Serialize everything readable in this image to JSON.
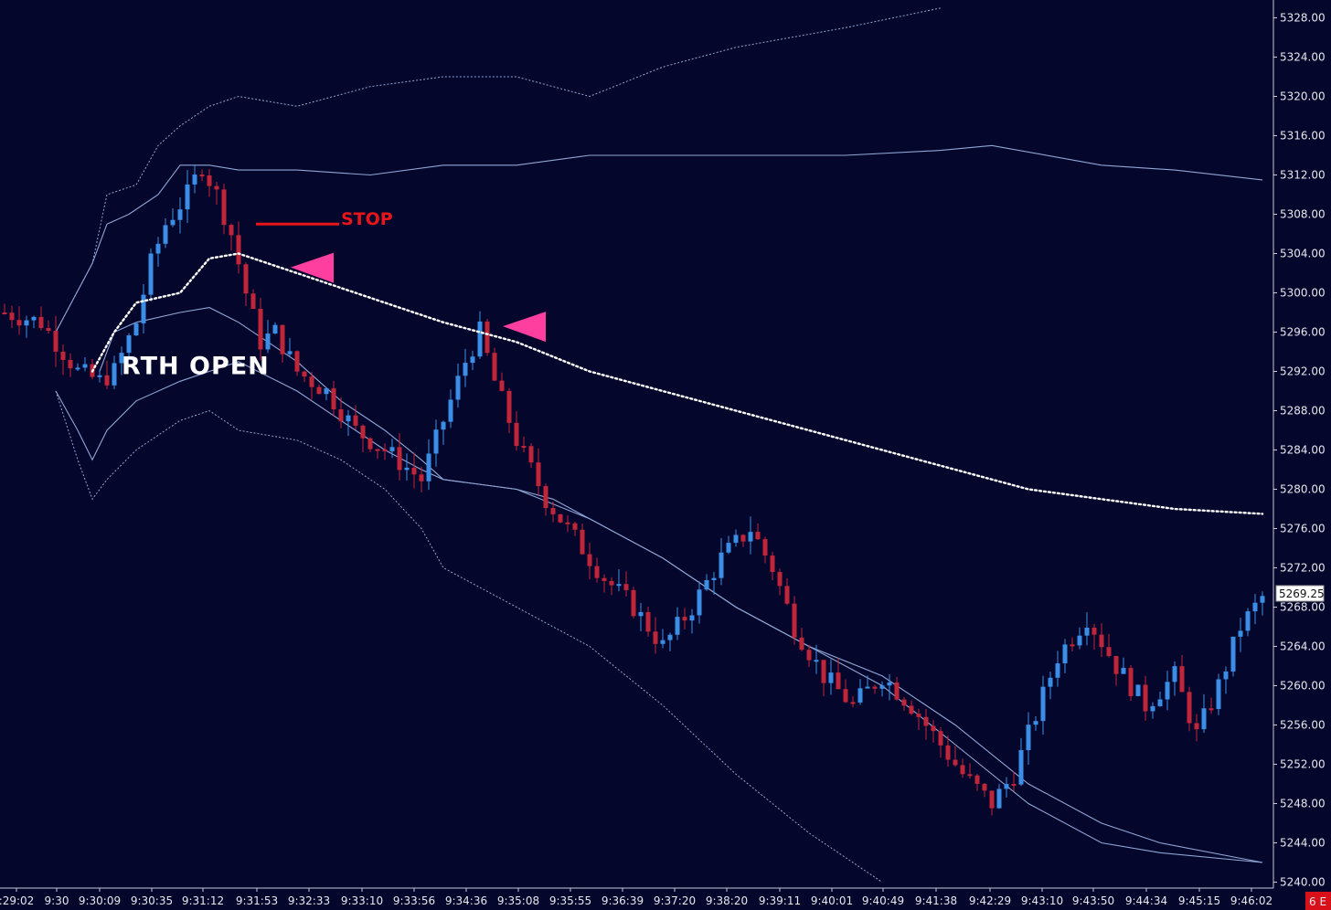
{
  "chart_data": {
    "type": "candlestick",
    "ylim": [
      5240,
      5329
    ],
    "y_ticks": [
      "5328.00",
      "5324.00",
      "5320.00",
      "5316.00",
      "5312.00",
      "5308.00",
      "5304.00",
      "5300.00",
      "5296.00",
      "5292.00",
      "5288.00",
      "5284.00",
      "5280.00",
      "5276.00",
      "5272.00",
      "5268.00",
      "5264.00",
      "5260.00",
      "5256.00",
      "5252.00",
      "5248.00",
      "5244.00",
      "5240.00"
    ],
    "x_ticks": [
      ":29:02",
      "9:30",
      "9:30:09",
      "9:30:35",
      "9:31:12",
      "9:31:53",
      "9:32:33",
      "9:33:10",
      "9:33:56",
      "9:34:36",
      "9:35:08",
      "9:35:55",
      "9:36:39",
      "9:37:20",
      "9:38:20",
      "9:39:11",
      "9:40:01",
      "9:40:49",
      "9:41:38",
      "9:42:29",
      "9:43:10",
      "9:43:50",
      "9:44:34",
      "9:45:15",
      "9:46:02"
    ],
    "last_price": "5269.25",
    "corner_label": "6 E",
    "grid": false,
    "price_path": [
      [
        0,
        5298
      ],
      [
        5,
        5297
      ],
      [
        10,
        5292
      ],
      [
        13,
        5291
      ],
      [
        15,
        5292
      ],
      [
        18,
        5297
      ],
      [
        20,
        5303
      ],
      [
        22,
        5307
      ],
      [
        25,
        5310
      ],
      [
        27,
        5313
      ],
      [
        29,
        5310
      ],
      [
        31,
        5306
      ],
      [
        33,
        5300
      ],
      [
        35,
        5295
      ],
      [
        37,
        5296
      ],
      [
        40,
        5292
      ],
      [
        44,
        5290
      ],
      [
        48,
        5286
      ],
      [
        52,
        5284
      ],
      [
        57,
        5281
      ],
      [
        60,
        5287
      ],
      [
        63,
        5293
      ],
      [
        65,
        5296
      ],
      [
        67,
        5291
      ],
      [
        70,
        5285
      ],
      [
        74,
        5279
      ],
      [
        78,
        5275
      ],
      [
        82,
        5271
      ],
      [
        86,
        5268
      ],
      [
        90,
        5264
      ],
      [
        94,
        5268
      ],
      [
        98,
        5273
      ],
      [
        102,
        5276
      ],
      [
        105,
        5272
      ],
      [
        108,
        5266
      ],
      [
        112,
        5261
      ],
      [
        116,
        5258
      ],
      [
        120,
        5261
      ],
      [
        124,
        5258
      ],
      [
        127,
        5255
      ],
      [
        131,
        5251
      ],
      [
        135,
        5248
      ],
      [
        138,
        5251
      ],
      [
        141,
        5257
      ],
      [
        144,
        5263
      ],
      [
        148,
        5267
      ],
      [
        152,
        5262
      ],
      [
        156,
        5258
      ],
      [
        160,
        5261
      ],
      [
        163,
        5255
      ],
      [
        166,
        5260
      ],
      [
        169,
        5266
      ],
      [
        172,
        5269
      ]
    ],
    "series": [
      {
        "name": "",
        "style": "dotted-white",
        "points": [
          [
            12,
            5292
          ],
          [
            15,
            5296
          ],
          [
            18,
            5299
          ],
          [
            24,
            5300
          ],
          [
            28,
            5303.5
          ],
          [
            32,
            5304
          ],
          [
            40,
            5302
          ],
          [
            52,
            5299
          ],
          [
            60,
            5297
          ],
          [
            70,
            5295
          ],
          [
            80,
            5292
          ],
          [
            90,
            5290
          ],
          [
            100,
            5288
          ],
          [
            110,
            5286
          ],
          [
            120,
            5284
          ],
          [
            130,
            5282
          ],
          [
            140,
            5280
          ],
          [
            150,
            5279
          ],
          [
            160,
            5278
          ],
          [
            172,
            5277.5
          ]
        ]
      },
      {
        "name": "",
        "style": "solid-blue",
        "points": [
          [
            13,
            5292
          ],
          [
            15,
            5296
          ],
          [
            18,
            5297
          ],
          [
            24,
            5298
          ],
          [
            28,
            5298.5
          ],
          [
            32,
            5297
          ],
          [
            40,
            5293
          ],
          [
            46,
            5289
          ],
          [
            52,
            5286
          ],
          [
            57,
            5283
          ],
          [
            60,
            5281
          ],
          [
            70,
            5280
          ],
          [
            75,
            5279
          ],
          [
            80,
            5277
          ],
          [
            90,
            5273
          ],
          [
            100,
            5268
          ],
          [
            110,
            5264
          ],
          [
            120,
            5260
          ],
          [
            130,
            5254
          ],
          [
            140,
            5248
          ],
          [
            150,
            5244
          ],
          [
            158,
            5243
          ],
          [
            172,
            5242
          ]
        ]
      },
      {
        "name": "",
        "style": "solid-blue",
        "points": [
          [
            7,
            5296
          ],
          [
            12,
            5303
          ],
          [
            14,
            5307
          ],
          [
            17,
            5308
          ],
          [
            21,
            5310
          ],
          [
            24,
            5313
          ],
          [
            28,
            5313
          ],
          [
            32,
            5312.5
          ],
          [
            40,
            5312.5
          ],
          [
            50,
            5312
          ],
          [
            60,
            5313
          ],
          [
            70,
            5313
          ],
          [
            80,
            5314
          ],
          [
            100,
            5314
          ],
          [
            115,
            5314
          ],
          [
            128,
            5314.5
          ],
          [
            135,
            5315
          ],
          [
            150,
            5313
          ],
          [
            160,
            5312.5
          ],
          [
            172,
            5311.5
          ]
        ]
      },
      {
        "name": "",
        "style": "dotted-blue",
        "points": [
          [
            7,
            5296
          ],
          [
            12,
            5303
          ],
          [
            14,
            5310
          ],
          [
            18,
            5311
          ],
          [
            21,
            5315
          ],
          [
            24,
            5317
          ],
          [
            28,
            5319
          ],
          [
            32,
            5320
          ],
          [
            40,
            5319
          ],
          [
            50,
            5321
          ],
          [
            60,
            5322
          ],
          [
            70,
            5322
          ],
          [
            80,
            5320
          ],
          [
            90,
            5323
          ],
          [
            100,
            5325
          ],
          [
            115,
            5327
          ],
          [
            128,
            5329
          ]
        ]
      },
      {
        "name": "",
        "style": "solid-blue",
        "points": [
          [
            7,
            5290
          ],
          [
            10,
            5286
          ],
          [
            12,
            5283
          ],
          [
            14,
            5286
          ],
          [
            18,
            5289
          ],
          [
            24,
            5291
          ],
          [
            28,
            5292
          ],
          [
            32,
            5293
          ],
          [
            40,
            5290
          ],
          [
            46,
            5287
          ],
          [
            52,
            5284
          ],
          [
            57,
            5282
          ],
          [
            60,
            5281
          ],
          [
            70,
            5280
          ],
          [
            80,
            5277
          ],
          [
            90,
            5273
          ],
          [
            100,
            5268
          ],
          [
            110,
            5264
          ],
          [
            120,
            5261
          ],
          [
            130,
            5256
          ],
          [
            140,
            5250
          ],
          [
            150,
            5246
          ],
          [
            158,
            5244
          ],
          [
            172,
            5242
          ]
        ]
      },
      {
        "name": "",
        "style": "dotted-blue",
        "points": [
          [
            7,
            5290
          ],
          [
            10,
            5283
          ],
          [
            12,
            5279
          ],
          [
            14,
            5281
          ],
          [
            18,
            5284
          ],
          [
            24,
            5287
          ],
          [
            28,
            5288
          ],
          [
            32,
            5286
          ],
          [
            40,
            5285
          ],
          [
            46,
            5283
          ],
          [
            52,
            5280
          ],
          [
            57,
            5276
          ],
          [
            60,
            5272
          ],
          [
            65,
            5270
          ],
          [
            70,
            5268
          ],
          [
            80,
            5264
          ],
          [
            90,
            5258
          ],
          [
            100,
            5251
          ],
          [
            110,
            5245
          ],
          [
            120,
            5240
          ]
        ]
      }
    ],
    "annotations": [
      {
        "text": "RTH OPEN",
        "type": "label",
        "x": 16,
        "y": 5292
      },
      {
        "text": "STOP",
        "type": "label",
        "x": 46,
        "y": 5307.5
      },
      {
        "text": "",
        "type": "stop-line",
        "x1": 34,
        "x2": 46,
        "y": 5307
      },
      {
        "text": "",
        "type": "entry-arrow",
        "x": 45,
        "y": 5302.5
      },
      {
        "text": "",
        "type": "entry-arrow",
        "x": 74,
        "y": 5296.5
      }
    ]
  },
  "colors": {
    "background": "#05062b",
    "bull": "#3a8ee6",
    "bear": "#c0263a",
    "band": "#8fa6d6",
    "dotted_avg": "#ffffff",
    "arrow": "#ff3f9f",
    "stop": "#e8151b",
    "price_box_bg": "#ffffff",
    "corner_bg": "#d8101a"
  }
}
